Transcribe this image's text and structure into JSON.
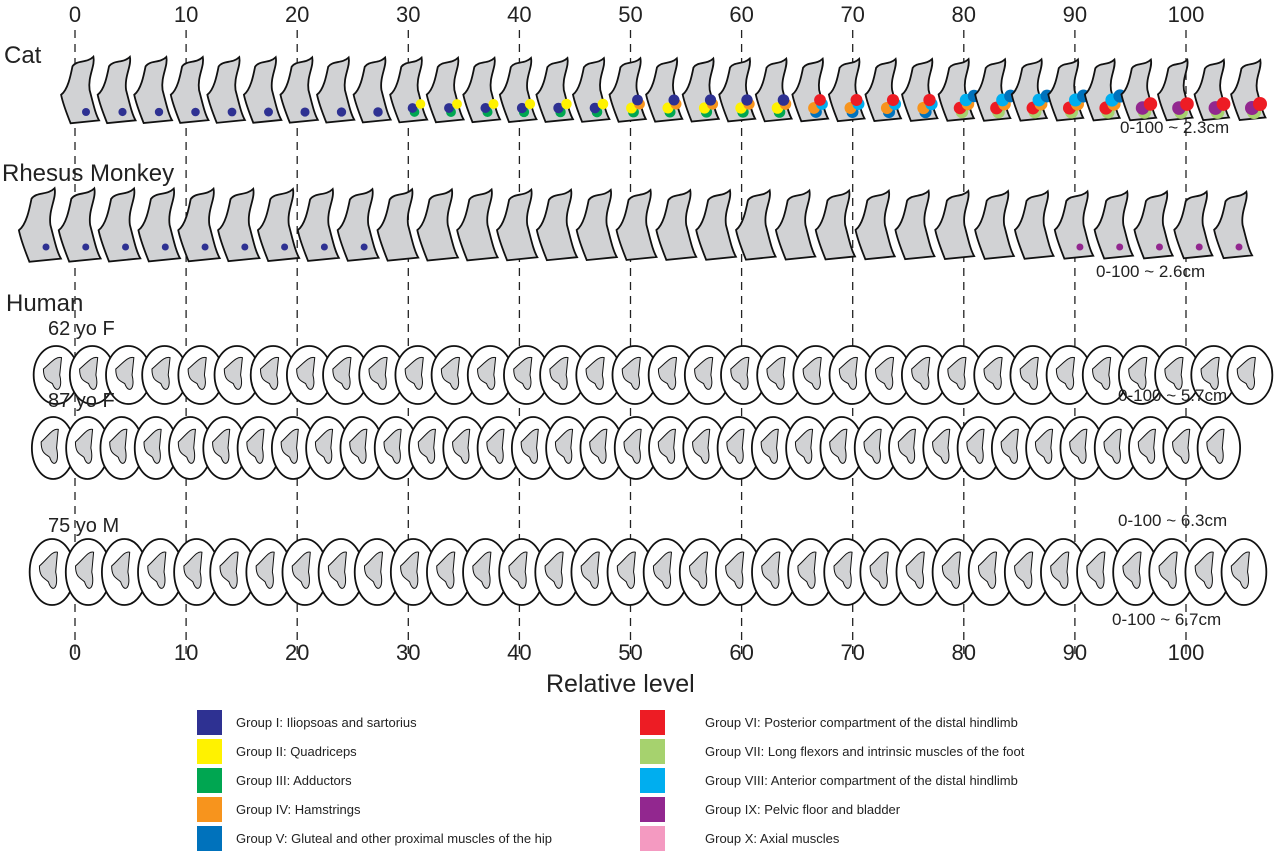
{
  "axis": {
    "ticks": [
      "0",
      "10",
      "20",
      "30",
      "40",
      "50",
      "60",
      "70",
      "80",
      "90",
      "100"
    ],
    "xlabel": "Relative level"
  },
  "species": {
    "cat": {
      "label": "Cat",
      "scale": "0-100 ~ 2.3cm"
    },
    "monkey": {
      "label": "Rhesus Monkey",
      "scale": "0-100 ~ 2.6cm"
    },
    "human": {
      "label": "Human",
      "subjects": [
        {
          "label": "62 yo F",
          "scale": "0-100 ~ 5.7cm"
        },
        {
          "label": "87 yo F",
          "scale": "0-100 ~ 6.3cm"
        },
        {
          "label": "75 yo M",
          "scale": "0-100 ~ 6.7cm"
        }
      ]
    }
  },
  "legend": [
    {
      "label": "Group I: Iliopsoas and sartorius",
      "color": "#2e3192"
    },
    {
      "label": "Group II: Quadriceps",
      "color": "#fff200"
    },
    {
      "label": "Group III: Adductors",
      "color": "#00a651"
    },
    {
      "label": "Group IV: Hamstrings",
      "color": "#f7941d"
    },
    {
      "label": "Group V: Gluteal and other proximal muscles of the hip",
      "color": "#0072bc"
    },
    {
      "label": "Group VI: Posterior compartment of the distal hindlimb",
      "color": "#ed1c24"
    },
    {
      "label": "Group VII: Long flexors and intrinsic muscles of the foot",
      "color": "#a6d26e"
    },
    {
      "label": "Group VIII: Anterior compartment of the distal hindlimb",
      "color": "#00aeef"
    },
    {
      "label": "Group IX: Pelvic floor and bladder",
      "color": "#92278f"
    },
    {
      "label": "Group X: Axial muscles",
      "color": "#f49ac1"
    }
  ]
}
